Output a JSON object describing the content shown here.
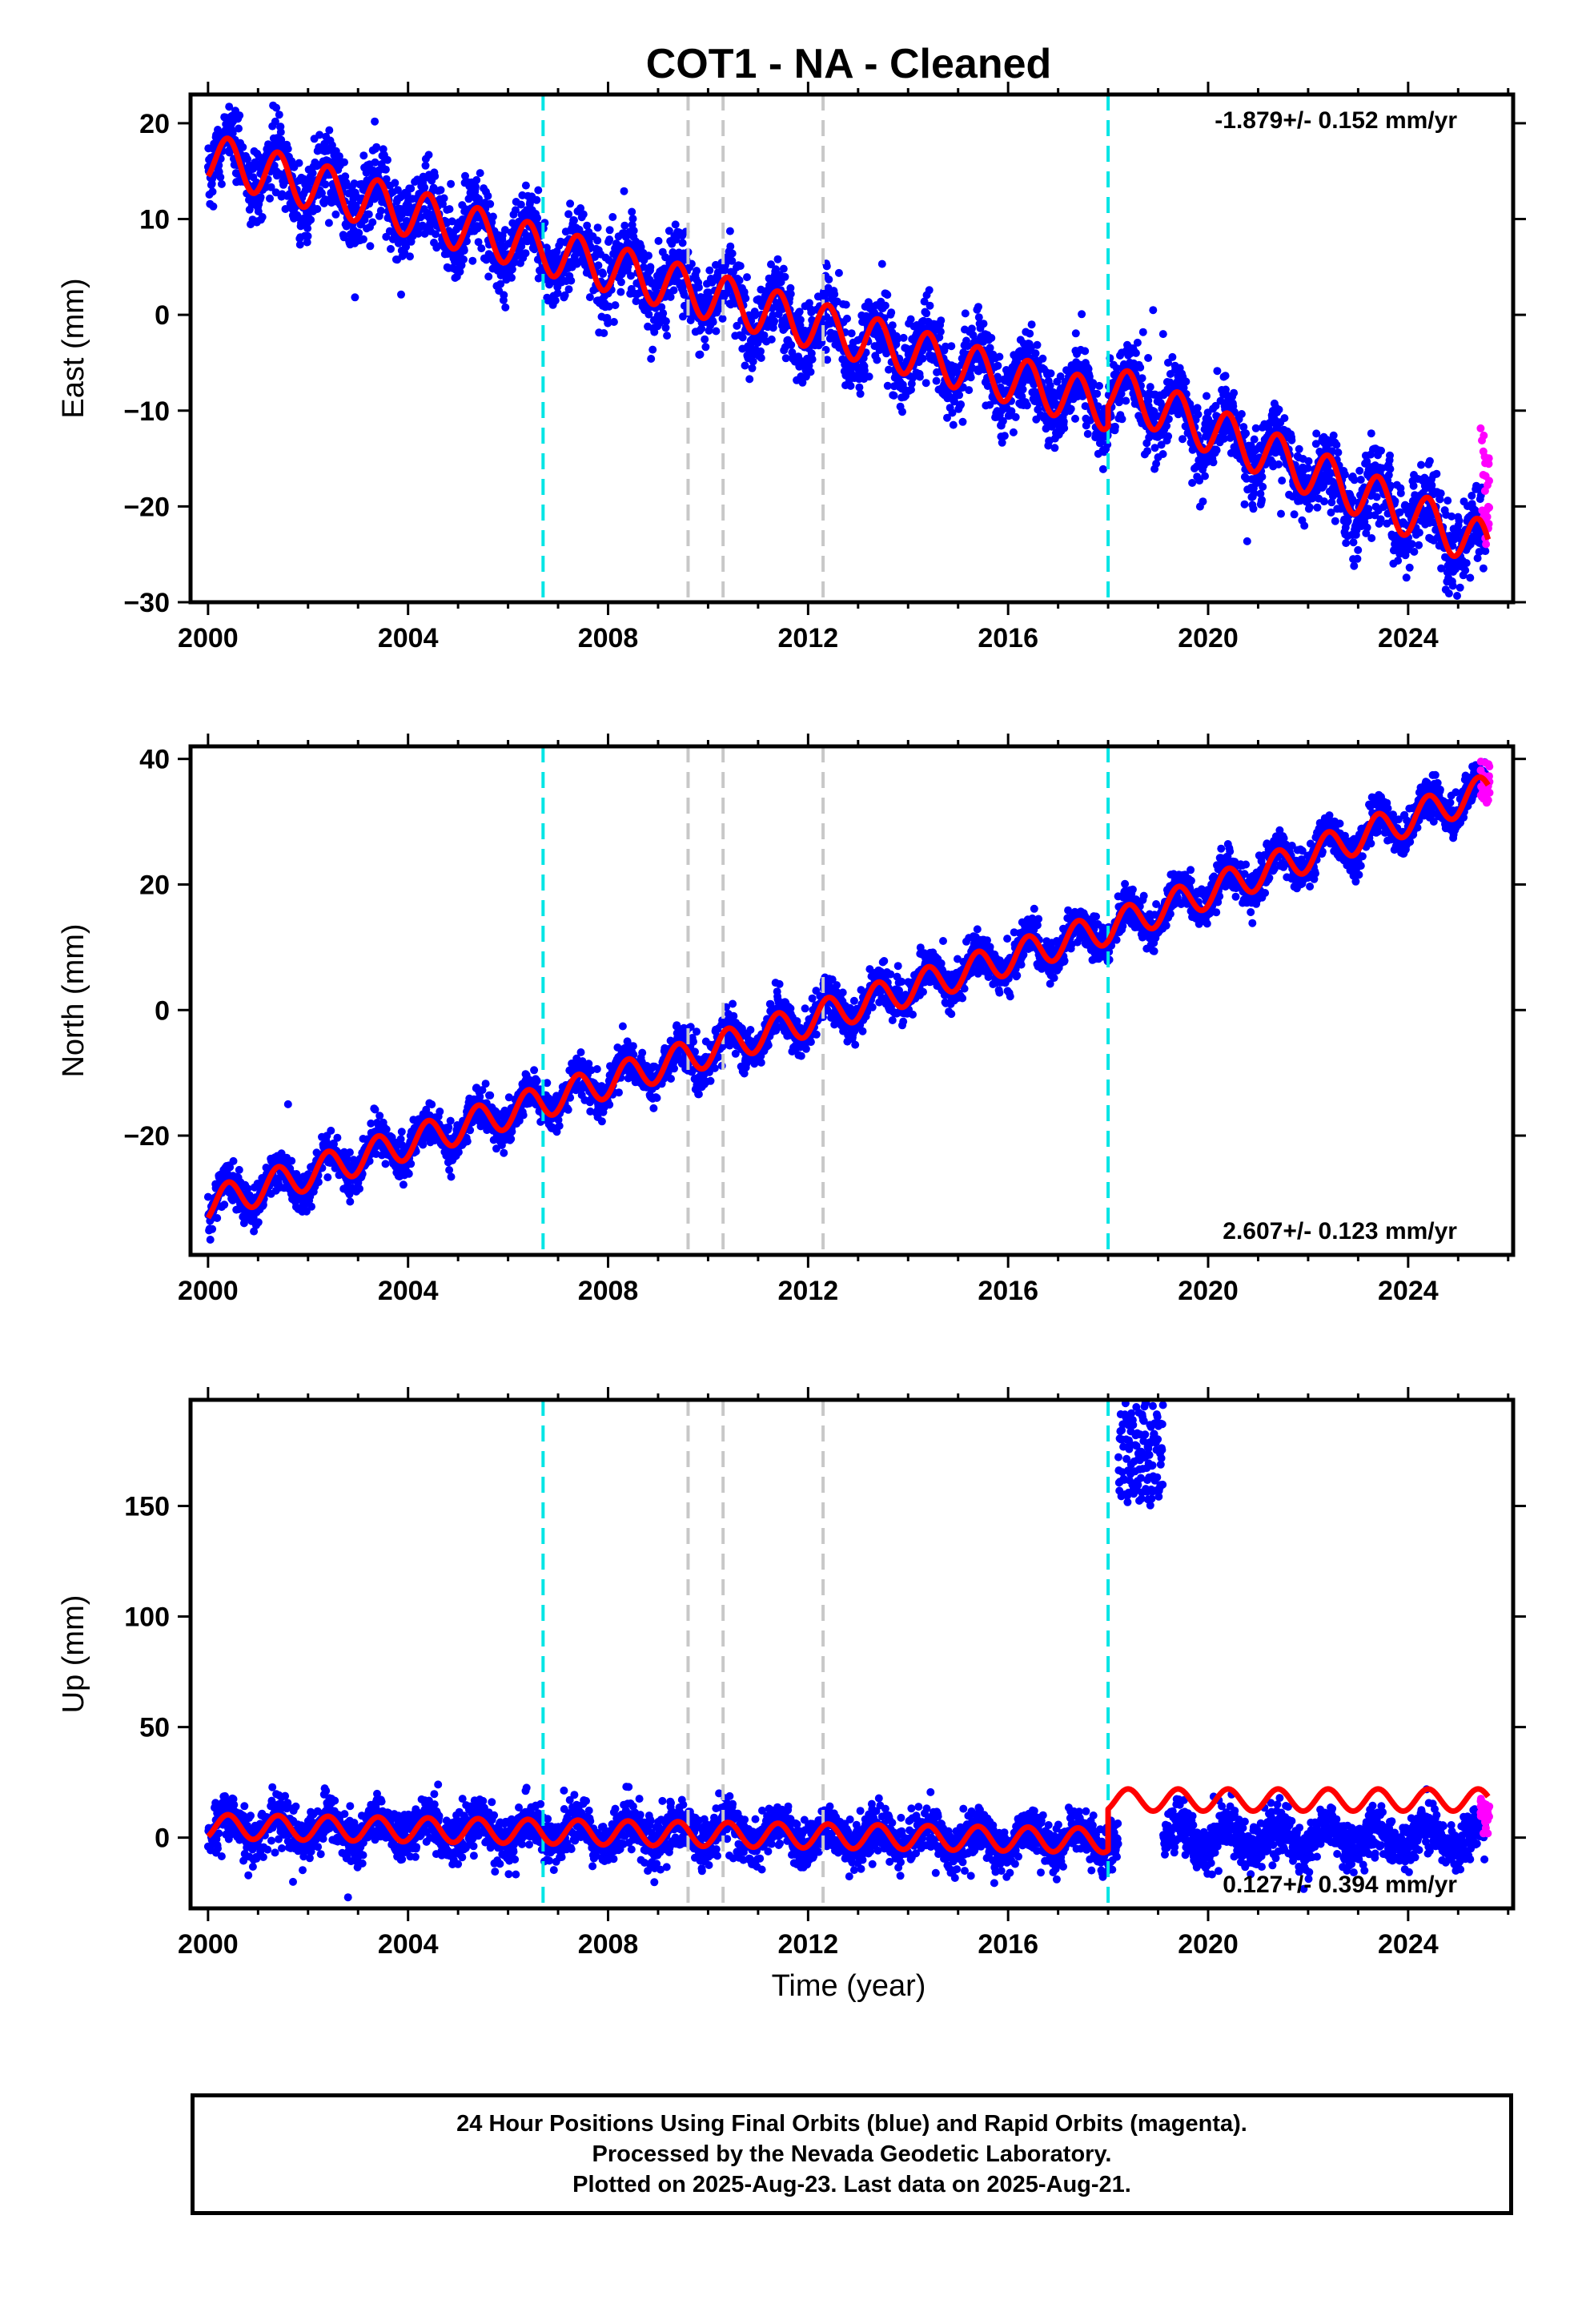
{
  "chart_data": {
    "type": "scatter",
    "title": "COT1  - NA - Cleaned",
    "xlabel": "Time (year)",
    "xlim": [
      1999.65,
      2026.1
    ],
    "x_ticks": [
      2000,
      2004,
      2008,
      2012,
      2016,
      2020,
      2024
    ],
    "x_tick_labels": [
      "2000",
      "2004",
      "2008",
      "2012",
      "2016",
      "2020",
      "2024"
    ],
    "equipment_change_lines": {
      "color": "#00e5e5",
      "years": [
        2006.7,
        2018.0
      ]
    },
    "earthquake_lines": {
      "color": "#c8c8c8",
      "years": [
        2009.6,
        2010.3,
        2012.3
      ]
    },
    "colors": {
      "final_orbits": "#0000ff",
      "rapid_orbits": "#ff00ff",
      "model": "#ff0000"
    },
    "panels": [
      {
        "name": "east",
        "ylabel": "East (mm)",
        "ylim": [
          -30,
          23
        ],
        "y_ticks": [
          -30,
          -20,
          -10,
          0,
          10,
          20
        ],
        "y_tick_labels": [
          "−30",
          "−20",
          "−10",
          "0",
          "10",
          "20"
        ],
        "rate_text": "-1.879+/- 0.152 mm/yr",
        "rate_position": "top-right",
        "model": [
          {
            "t0": 2000.0,
            "t1": 2018.0,
            "y0": 16.5,
            "slope": -1.45,
            "amp": 2.5
          },
          {
            "t0": 2018.0,
            "t1": 2025.6,
            "y0": -7.5,
            "slope": -2.2,
            "amp": 2.5
          }
        ],
        "scatter_sd": 2.0,
        "extra_points": [
          {
            "x": 2018.5,
            "y": -3.5
          },
          {
            "x": 2018.7,
            "y": -1.8
          },
          {
            "x": 2018.9,
            "y": 0.5
          },
          {
            "x": 2019.1,
            "y": -2.0
          },
          {
            "x": 2018.8,
            "y": -4.5
          },
          {
            "x": 2019.2,
            "y": -5.0
          }
        ],
        "rapid_range": [
          -24,
          -11.5
        ]
      },
      {
        "name": "north",
        "ylabel": "North (mm)",
        "ylim": [
          -39,
          42
        ],
        "y_ticks": [
          -20,
          0,
          20,
          40
        ],
        "y_tick_labels": [
          "−20",
          "0",
          "20",
          "40"
        ],
        "rate_text": "2.607+/- 0.123 mm/yr",
        "rate_position": "bottom-right",
        "model": [
          {
            "t0": 2000.0,
            "t1": 2018.0,
            "y0": -31.0,
            "slope": 2.45,
            "amp": 2.6
          },
          {
            "t0": 2018.0,
            "t1": 2025.6,
            "y0": 13.0,
            "slope": 2.9,
            "amp": 2.6
          }
        ],
        "scatter_sd": 1.6,
        "extra_points": [
          {
            "x": 2001.6,
            "y": -15.0
          },
          {
            "x": 2024.2,
            "y": 33.0
          },
          {
            "x": 2014.7,
            "y": 11.0
          }
        ],
        "rapid_range": [
          33,
          40
        ]
      },
      {
        "name": "up",
        "ylabel": "Up (mm)",
        "ylim": [
          -32,
          198
        ],
        "y_ticks": [
          0,
          50,
          100,
          150
        ],
        "y_tick_labels": [
          "0",
          "50",
          "100",
          "150"
        ],
        "rate_text": "0.127+/- 0.394 mm/yr",
        "rate_position": "bottom-right",
        "model": [
          {
            "t0": 2000.0,
            "t1": 2018.0,
            "y0": 5.0,
            "slope": -0.35,
            "amp": 5.5
          },
          {
            "t0": 2018.0,
            "t1": 2025.6,
            "y0": 17.0,
            "slope": 0.0,
            "amp": 5.0
          }
        ],
        "scatter_sd": 5.5,
        "offset_segments": [
          {
            "t0": 2018.0,
            "t1": 2025.6,
            "shift": -17.0
          }
        ],
        "cluster": {
          "x0": 2018.2,
          "x1": 2019.1,
          "y_min": 153,
          "y_max": 195
        },
        "extra_points": [
          {
            "x": 2002.8,
            "y": -27.0
          },
          {
            "x": 2001.7,
            "y": -20.0
          },
          {
            "x": 2004.6,
            "y": 24.0
          }
        ],
        "rapid_range": [
          0,
          18
        ]
      }
    ]
  },
  "footer": {
    "line1": "24 Hour Positions Using Final Orbits (blue) and Rapid Orbits (magenta).",
    "line2": "Processed by the Nevada Geodetic Laboratory.",
    "line3": "Plotted on 2025-Aug-23. Last data on 2025-Aug-21."
  }
}
